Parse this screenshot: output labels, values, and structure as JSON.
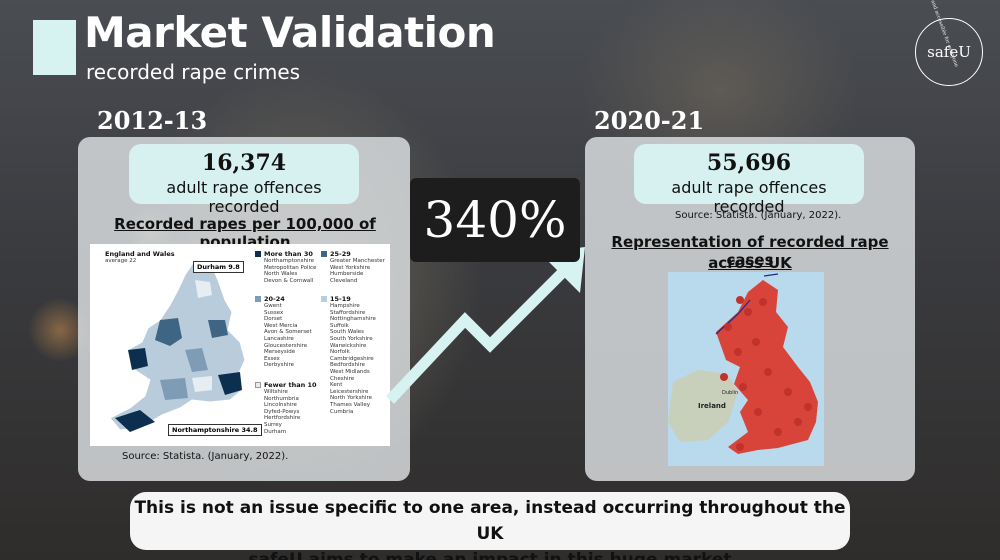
{
  "header": {
    "title": "Market Validation",
    "subtitle": "recorded rape crimes",
    "logo_text": "safeU",
    "logo_ring_text": "safe and accessible for everyone"
  },
  "left": {
    "year": "2012-13",
    "stat_number": "16,374",
    "stat_label": "adult rape offences recorded",
    "heading": "Recorded rapes per 100,000 of population",
    "source": "Source: Statista. (January, 2022).",
    "map": {
      "avg_title": "England and Wales",
      "avg_value": "average 22",
      "callout_top": "Durham 9.8",
      "callout_bottom": "Northamptonshire 34.8",
      "legend": [
        {
          "title": "More than 30",
          "items": "Northamptonshire\nMetropolitan Police\nNorth Wales\nDevon & Cornwall",
          "color": "#0d2f4f"
        },
        {
          "title": "20-24",
          "items": "Gwent\nSussex\nDorset\nWest Mercia\nAvon & Somerset\nLancashire\nGloucestershire\nMerseyside\nEssex\nDerbyshire",
          "color": "#7e9cb5"
        },
        {
          "title": "Fewer than 10",
          "items": "Wiltshire\nNorthumbria\nLincolnshire\nDyfed-Powys\nHertfordshire\nSurrey\nDurham",
          "color": "#e6edf3"
        },
        {
          "title": "25-29",
          "items": "Greater Manchester\nWest Yorkshire\nHumberside\nCleveland",
          "color": "#3f6584"
        },
        {
          "title": "15-19",
          "items": "Hampshire\nStaffordshire\nNottinghamshire\nSuffolk\nSouth Wales\nSouth Yorkshire\nWarwickshire\nNorfolk\nCambridgeshire\nBedfordshire\nWest Midlands\nCheshire\nKent\nLeicestershire\nNorth Yorkshire\nThames Valley\nCumbria",
          "color": "#b9ccdc"
        }
      ]
    }
  },
  "center": {
    "percent": "340%"
  },
  "right": {
    "year": "2020-21",
    "stat_number": "55,696",
    "stat_label": "adult rape offences recorded",
    "source": "Source: Statista. (January, 2022).",
    "heading_line1": "Representation of recorded rape cases",
    "heading_line2": "across UK",
    "map_label_ireland": "Ireland",
    "map_label_dublin": "Dublin"
  },
  "footer": {
    "line1": "This is not an issue specific to one area, instead occurring throughout the UK",
    "line2": "safeU aims to make an impact in this huge market"
  },
  "colors": {
    "accent": "#d6f3f1",
    "panel": "#dfe3e5",
    "dark_box": "#1d1d1d",
    "pin": "#d23a32"
  }
}
